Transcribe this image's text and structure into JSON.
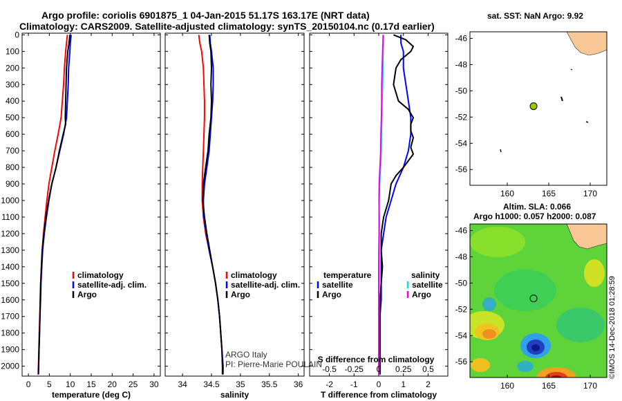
{
  "figure": {
    "title_line1": "Argo profile: coriolis 6901875_1 04-Jan-2015 51.17S 163.17E (NRT data)",
    "title_line2": "Climatology: CARS2009. Satellite-adjusted climatology: synTS_20150104.nc (0.17d earlier)",
    "credit_line1": "ARGO Italy",
    "credit_line2": "PI: Pierre-Marie POULAIN",
    "watermark": "©IMOS 14-Dec-2018 01:28:59",
    "sst_title": "sat. SST: NaN Argo: 9.92",
    "sla_title_line1": "Altim. SLA: 0.066",
    "sla_title_line2": "Argo h1000: 0.057 h2000: 0.087"
  },
  "colors": {
    "climatology": "#ff0000",
    "satellite": "#0000ff",
    "argo": "#000000",
    "temp_diff": "#00e5e5",
    "sal_diff": "#ee00ee",
    "land": "#f9c896",
    "float_marker": "#99cc00"
  },
  "chart_data": [
    {
      "type": "line",
      "panel": "temperature",
      "xlabel": "temperature (deg C)",
      "ylabel": "",
      "xlim": [
        -1.5,
        31.5
      ],
      "ylim": [
        2060,
        -10
      ],
      "xticks": [
        "0",
        "5",
        "10",
        "15",
        "20",
        "25",
        "30"
      ],
      "yticks": [
        "0",
        "100",
        "200",
        "300",
        "400",
        "500",
        "600",
        "700",
        "800",
        "900",
        "1000",
        "1100",
        "1200",
        "1300",
        "1400",
        "1500",
        "1600",
        "1700",
        "1800",
        "1900",
        "2000"
      ],
      "legend": [
        "climatology",
        "satellite-adj. clim.",
        "Argo"
      ],
      "series": [
        {
          "name": "climatology",
          "depth": [
            0,
            50,
            100,
            200,
            300,
            400,
            500,
            600,
            700,
            800,
            900,
            1000,
            1100,
            1200,
            1300,
            1400,
            1500,
            1600,
            1700,
            1800,
            1900,
            2000,
            2050
          ],
          "values": [
            9.3,
            9.1,
            8.9,
            8.6,
            8.4,
            8.1,
            7.8,
            7.1,
            6.3,
            5.6,
            4.9,
            4.4,
            4.0,
            3.6,
            3.3,
            3.1,
            2.9,
            2.8,
            2.7,
            2.6,
            2.5,
            2.4,
            2.35
          ]
        },
        {
          "name": "satellite-adj. clim.",
          "depth": [
            0,
            50,
            100,
            200,
            300,
            400,
            500,
            600,
            700,
            800,
            900,
            1000,
            1100,
            1200,
            1300,
            1400,
            1500,
            1600,
            1700,
            1800,
            1900,
            2000,
            2050
          ],
          "values": [
            10.2,
            10.0,
            9.9,
            9.6,
            9.5,
            9.3,
            9.1,
            8.4,
            7.5,
            6.6,
            5.6,
            4.9,
            4.3,
            3.8,
            3.4,
            3.2,
            3.0,
            2.9,
            2.75,
            2.65,
            2.55,
            2.45,
            2.4
          ]
        },
        {
          "name": "Argo",
          "depth": [
            0,
            50,
            100,
            200,
            300,
            400,
            500,
            540,
            600,
            700,
            800,
            900,
            1000,
            1100,
            1200,
            1300,
            1400,
            1500,
            1600,
            1700,
            1800,
            1900,
            2000,
            2050
          ],
          "values": [
            9.9,
            9.7,
            9.4,
            9.1,
            9.0,
            8.9,
            8.8,
            8.9,
            8.3,
            7.4,
            6.6,
            5.6,
            4.8,
            4.2,
            3.7,
            3.3,
            3.1,
            2.95,
            2.85,
            2.75,
            2.65,
            2.55,
            2.45,
            2.4
          ]
        }
      ]
    },
    {
      "type": "line",
      "panel": "salinity",
      "xlabel": "salinity",
      "ylabel": "",
      "xlim": [
        33.7,
        36.1
      ],
      "ylim": [
        2060,
        -10
      ],
      "xticks": [
        "34",
        "34.5",
        "35",
        "35.5",
        "36"
      ],
      "legend": [
        "climatology",
        "satellite-adj. clim.",
        "Argo"
      ],
      "series": [
        {
          "name": "climatology",
          "depth": [
            0,
            50,
            100,
            200,
            300,
            400,
            500,
            600,
            700,
            800,
            900,
            1000,
            1100,
            1200,
            1300,
            1400,
            1500,
            1600,
            1700,
            1800,
            1900,
            2000,
            2050
          ],
          "values": [
            34.28,
            34.3,
            34.33,
            34.36,
            34.37,
            34.38,
            34.38,
            34.37,
            34.36,
            34.35,
            34.34,
            34.34,
            34.36,
            34.4,
            34.46,
            34.52,
            34.57,
            34.61,
            34.64,
            34.66,
            34.68,
            34.69,
            34.69
          ]
        },
        {
          "name": "satellite-adj. clim.",
          "depth": [
            0,
            50,
            100,
            200,
            300,
            400,
            500,
            600,
            700,
            800,
            900,
            1000,
            1100,
            1200,
            1300,
            1400,
            1500,
            1600,
            1700,
            1800,
            1900,
            2000,
            2050
          ],
          "values": [
            34.47,
            34.48,
            34.5,
            34.53,
            34.53,
            34.52,
            34.5,
            34.48,
            34.46,
            34.42,
            34.38,
            34.36,
            34.37,
            34.41,
            34.46,
            34.52,
            34.57,
            34.61,
            34.64,
            34.66,
            34.68,
            34.7,
            34.7
          ]
        },
        {
          "name": "Argo",
          "depth": [
            0,
            50,
            100,
            200,
            300,
            400,
            500,
            600,
            700,
            800,
            900,
            1000,
            1100,
            1200,
            1300,
            1400,
            1500,
            1600,
            1700,
            1800,
            1900,
            2000,
            2050
          ],
          "values": [
            34.46,
            34.47,
            34.49,
            34.5,
            34.49,
            34.5,
            34.49,
            34.46,
            34.44,
            34.4,
            34.36,
            34.35,
            34.38,
            34.42,
            34.47,
            34.52,
            34.57,
            34.61,
            34.64,
            34.66,
            34.68,
            34.69,
            34.69
          ]
        }
      ]
    },
    {
      "type": "line",
      "panel": "differences",
      "xlabel": "T difference from climatology",
      "xlabel_top": "S difference from climatology",
      "xlim": [
        -2.8,
        2.8
      ],
      "ylim": [
        2060,
        -10
      ],
      "xticks": [
        "-2",
        "-1",
        "0",
        "1",
        "2"
      ],
      "xticks_salinity": [
        "-0.5",
        "-0.25",
        "0",
        "0.25",
        "0.5"
      ],
      "legend_temperature_title": "temperature",
      "legend_salinity_title": "salinity",
      "legend": [
        "satellite",
        "Argo",
        "satellite",
        "Argo"
      ],
      "series": [
        {
          "name": "temperature satellite",
          "depth": [
            0,
            50,
            100,
            200,
            300,
            400,
            500,
            600,
            700,
            800,
            900,
            1000,
            1100,
            1200,
            1300,
            1400,
            1500,
            1600,
            1700,
            1800,
            1900,
            2000,
            2050
          ],
          "values": [
            0.9,
            0.9,
            1.0,
            1.0,
            1.1,
            1.2,
            1.3,
            1.3,
            1.2,
            1.0,
            0.7,
            0.5,
            0.3,
            0.2,
            0.1,
            0.1,
            0.1,
            0.1,
            0.05,
            0.05,
            0.05,
            0.05,
            0.05
          ]
        },
        {
          "name": "temperature Argo",
          "depth": [
            0,
            30,
            70,
            100,
            150,
            200,
            300,
            400,
            450,
            500,
            540,
            580,
            620,
            680,
            720,
            760,
            800,
            850,
            900,
            1000,
            1100,
            1200,
            1300,
            1400,
            1500,
            1600,
            1700,
            1800,
            1900,
            2000,
            2050
          ],
          "values": [
            0.6,
            1.1,
            1.4,
            1.3,
            0.9,
            0.7,
            0.6,
            0.8,
            1.2,
            1.4,
            1.3,
            1.3,
            1.4,
            1.3,
            1.4,
            1.2,
            1.0,
            0.7,
            0.5,
            0.4,
            0.2,
            0.1,
            0.1,
            0.15,
            0.1,
            0.05,
            0.05,
            0.05,
            0.05,
            0.05,
            0.05
          ]
        },
        {
          "name": "salinity satellite",
          "depth": [
            0,
            50,
            100,
            200,
            300,
            400,
            500,
            600,
            700,
            800,
            900,
            1000,
            1100,
            1200,
            1300,
            1400,
            1500,
            1600,
            1700,
            1800,
            1900,
            2000,
            2050
          ],
          "values": [
            0.19,
            0.18,
            0.17,
            0.17,
            0.16,
            0.14,
            0.12,
            0.11,
            0.1,
            0.07,
            0.04,
            0.02,
            0.01,
            0.01,
            0.0,
            0.0,
            0.0,
            0.0,
            0.0,
            0.0,
            0.0,
            0.0,
            0.0
          ]
        },
        {
          "name": "salinity Argo",
          "depth": [
            0,
            50,
            100,
            200,
            300,
            400,
            500,
            600,
            700,
            800,
            900,
            1000,
            1100,
            1200,
            1300,
            1400,
            1500,
            1600,
            1700,
            1800,
            1900,
            2000,
            2050
          ],
          "values": [
            0.18,
            0.17,
            0.16,
            0.14,
            0.12,
            0.12,
            0.11,
            0.09,
            0.08,
            0.05,
            0.02,
            0.01,
            0.02,
            0.02,
            0.01,
            0.0,
            0.0,
            0.0,
            0.0,
            0.0,
            0.0,
            0.0,
            0.0
          ]
        }
      ]
    },
    {
      "type": "scatter",
      "panel": "sst_map",
      "title": "sat. SST: NaN Argo: 9.92",
      "xlim": [
        155.5,
        172
      ],
      "ylim": [
        -57.2,
        -45.5
      ],
      "xticks": [
        "160",
        "165",
        "170"
      ],
      "yticks": [
        "-46",
        "-48",
        "-50",
        "-52",
        "-54",
        "-56"
      ],
      "points": [
        {
          "lon": 163.17,
          "lat": -51.17,
          "label": "Argo float"
        }
      ]
    },
    {
      "type": "heatmap",
      "panel": "sla_map",
      "title": "Altim. SLA: 0.066",
      "xlim": [
        155.5,
        172
      ],
      "ylim": [
        -57.2,
        -45.5
      ],
      "xticks": [
        "160",
        "165",
        "170"
      ],
      "yticks": [
        "-46",
        "-48",
        "-50",
        "-52",
        "-54",
        "-56"
      ],
      "points": [
        {
          "lon": 163.17,
          "lat": -51.17,
          "label": "Argo float"
        }
      ]
    }
  ]
}
